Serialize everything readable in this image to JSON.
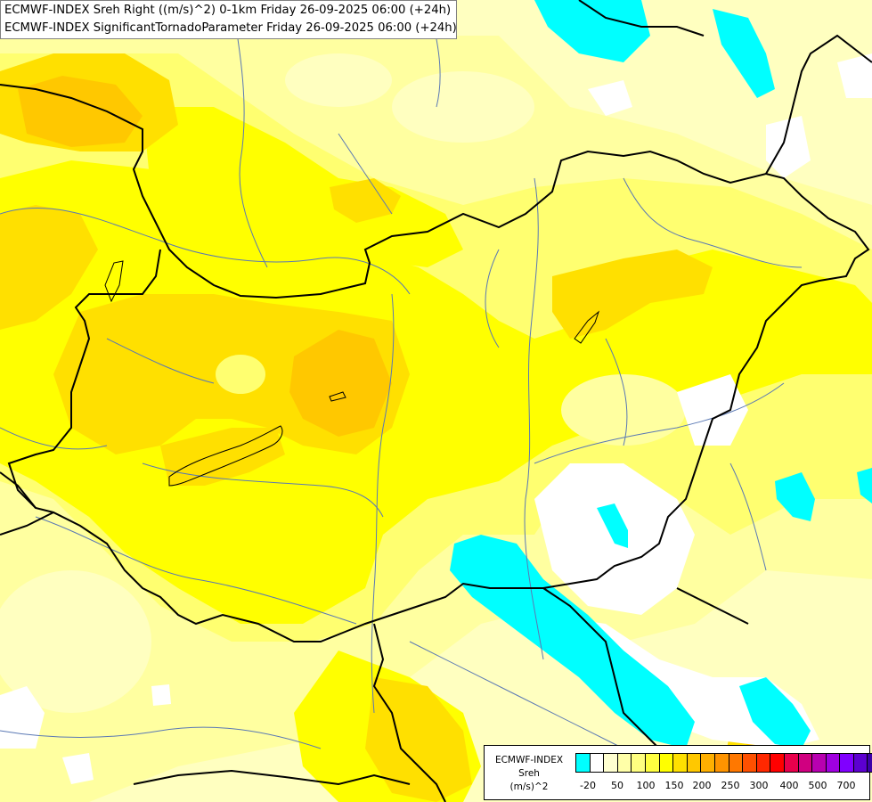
{
  "header": {
    "line1": "ECMWF-INDEX Sreh Right ((m/s)^2) 0-1km Friday 26-09-2025 06:00 (+24h)",
    "line2": "ECMWF-INDEX SignificantTornadoParameter Friday 26-09-2025 06:00 (+24h)"
  },
  "legend": {
    "title_line1": "ECMWF-INDEX",
    "title_line2": "Sreh",
    "title_line3": "(m/s)^2",
    "ticks": [
      "-20",
      "50",
      "100",
      "150",
      "200",
      "250",
      "300",
      "400",
      "500",
      "700"
    ],
    "colors": [
      "#00ffff",
      "#ffffff",
      "#ffffd0",
      "#ffffa8",
      "#ffff80",
      "#ffff40",
      "#ffff00",
      "#ffe000",
      "#ffc800",
      "#ffb000",
      "#ff9400",
      "#ff7800",
      "#ff5000",
      "#ff2800",
      "#ff0000",
      "#e8004c",
      "#d00080",
      "#b800b0",
      "#a000e0",
      "#8000ff",
      "#5c00d0",
      "#3c00a8",
      "#200080",
      "#000060"
    ]
  },
  "map": {
    "colors": {
      "base": "#ffffc0",
      "pale": "#ffffa0",
      "light_yellow": "#ffff70",
      "yellow": "#ffff00",
      "gold": "#ffe000",
      "amber": "#ffc800",
      "white": "#ffffff",
      "cyan": "#00ffff",
      "border": "#000000",
      "river": "#5a78b4"
    }
  }
}
